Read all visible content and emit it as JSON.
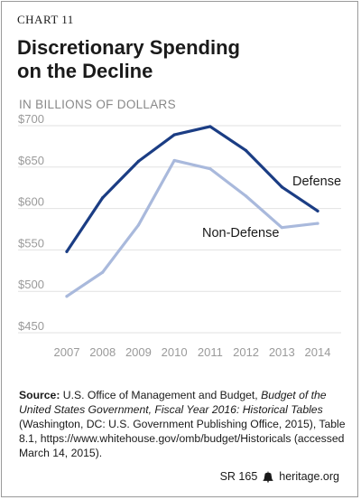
{
  "header": {
    "chart_label": "CHART 11",
    "title_line1": "Discretionary Spending",
    "title_line2": "on the Decline",
    "units": "IN BILLIONS OF DOLLARS"
  },
  "source": {
    "label": "Source:",
    "text_1": " U.S. Office of Management and Budget, ",
    "italic": "Budget of the United States Government, Fiscal Year 2016: Historical Tables",
    "text_2": " (Washington, DC: U.S. Government Publishing Office, 2015), Table 8.1, https://www.whitehouse.gov/omb/budget/Historicals (accessed March 14, 2015)."
  },
  "footer": {
    "report_id": "SR 165",
    "site": "heritage.org"
  },
  "colors": {
    "defense": "#1b3d84",
    "non_defense": "#a9b9dc",
    "grid": "#e2e2e2",
    "tick_text": "#9a9a9a"
  },
  "chart_data": {
    "type": "line",
    "title": "Discretionary Spending on the Decline",
    "ylabel": "IN BILLIONS OF DOLLARS",
    "x": [
      2007,
      2008,
      2009,
      2010,
      2011,
      2012,
      2013,
      2014
    ],
    "x_tick_labels": [
      "2007",
      "2008",
      "2009",
      "2010",
      "2011",
      "2012",
      "2013",
      "2014"
    ],
    "ylim": [
      450,
      700
    ],
    "y_ticks": [
      450,
      500,
      550,
      600,
      650,
      700
    ],
    "y_tick_labels": [
      "$450",
      "$500",
      "$550",
      "$600",
      "$650",
      "$700"
    ],
    "grid": true,
    "series": [
      {
        "name": "Defense",
        "values": [
          548,
          613,
          657,
          689,
          699,
          670,
          626,
          597
        ]
      },
      {
        "name": "Non-Defense",
        "values": [
          494,
          523,
          580,
          658,
          648,
          615,
          577,
          582
        ]
      }
    ]
  }
}
